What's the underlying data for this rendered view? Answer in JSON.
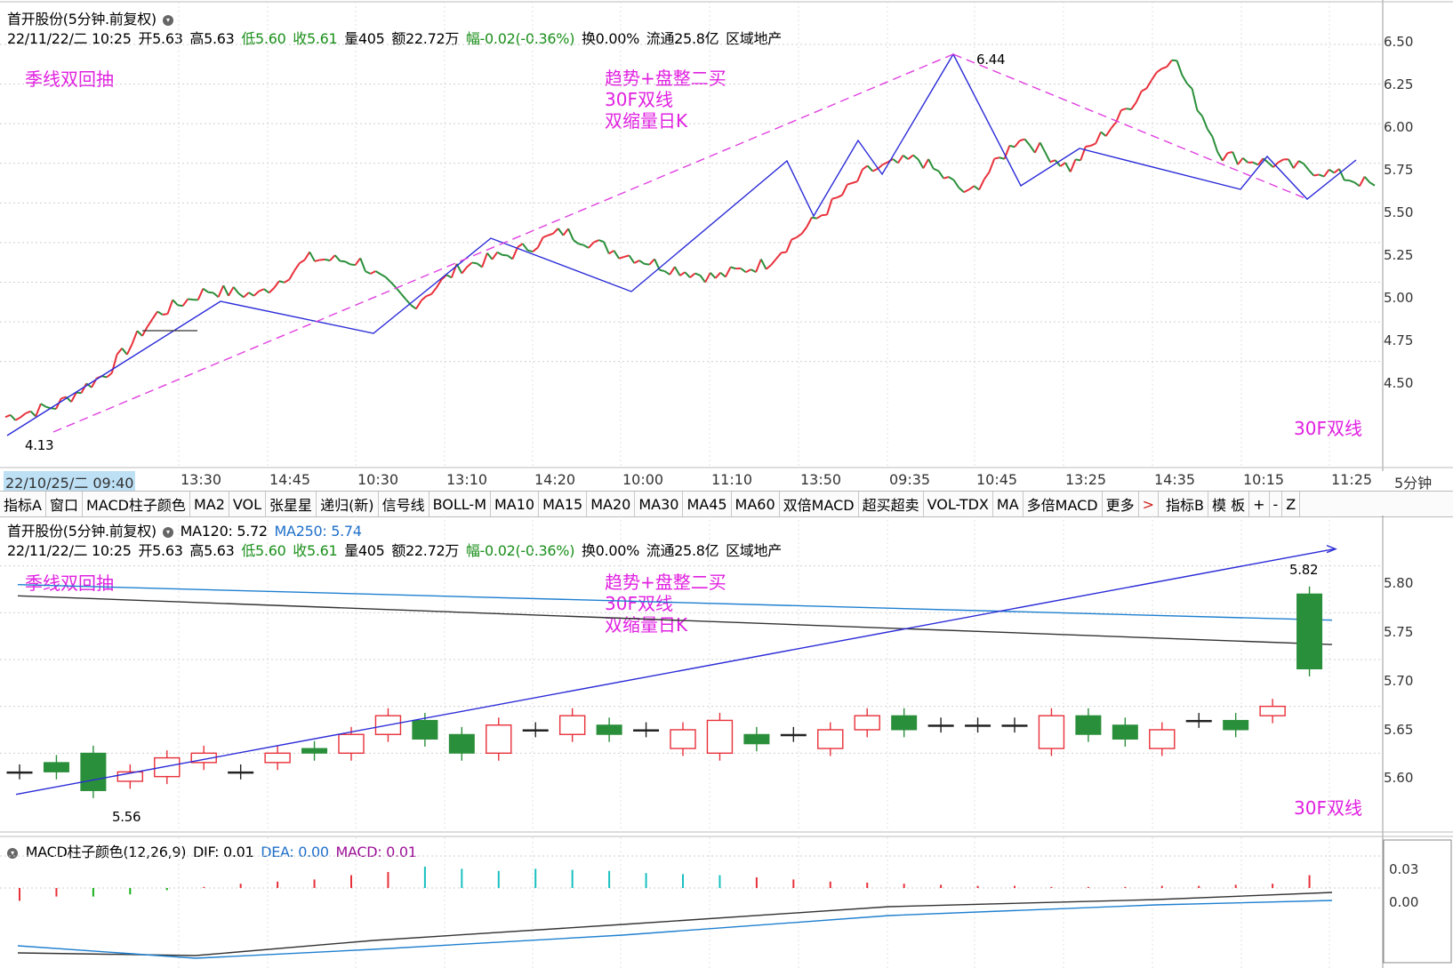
{
  "top": {
    "title": "首开股份(5分钟.前复权)",
    "bar": {
      "datetime": "22/11/22/二 10:25",
      "open": "开5.63",
      "high": "高5.63",
      "low": "低5.60",
      "close": "收5.61",
      "vol": "量405",
      "amt": "额22.72万",
      "chg": "幅-0.02(-0.36%)",
      "turn": "换0.00%",
      "flow": "流通25.8亿",
      "sector": "区域地产"
    },
    "notes": {
      "left": "季线双回抽",
      "mid1": "趋势+盘整二买",
      "mid2": "30F双线",
      "mid3": "双缩量日K",
      "br": "30F双线"
    },
    "y_ticks": [
      "6.50",
      "6.25",
      "6.00",
      "5.75",
      "5.50",
      "5.25",
      "5.00",
      "4.75",
      "4.50"
    ],
    "hi_label": "6.44",
    "lo_label": "4.13"
  },
  "time_axis": {
    "start": "22/10/25/二 09:40",
    "ticks": [
      "13:30",
      "14:45",
      "10:30",
      "13:10",
      "14:20",
      "10:00",
      "11:10",
      "13:50",
      "09:35",
      "10:45",
      "13:25",
      "14:35",
      "10:15",
      "11:25"
    ],
    "period": "5分钟"
  },
  "toolbar": {
    "items": [
      "指标A",
      "窗口",
      "MACD柱子颜色",
      "MA2",
      "VOL",
      "张星星",
      "递归(新)",
      "信号线",
      "BOLL-M",
      "MA10",
      "MA15",
      "MA20",
      "MA30",
      "MA45",
      "MA60",
      "双倍MACD",
      "超买超卖",
      "VOL-TDX",
      "MA",
      "多倍MACD",
      "更多",
      ">",
      "指标B",
      "模 板",
      "+",
      "-",
      "Z"
    ]
  },
  "mid": {
    "title": "首开股份(5分钟.前复权)",
    "ma120": "MA120: 5.72",
    "ma250": "MA250: 5.74",
    "y_ticks": [
      "5.80",
      "5.75",
      "5.70",
      "5.65",
      "5.60"
    ],
    "hi_label": "5.82",
    "lo_label": "5.56"
  },
  "macd": {
    "title": "MACD柱子颜色(12,26,9)",
    "dif": "DIF: 0.01",
    "dea": "DEA: 0.00",
    "macd": "MACD: 0.01",
    "y_ticks": [
      "0.03",
      "0.00"
    ]
  },
  "colors": {
    "up": "#e8303a",
    "down": "#2a8f3a",
    "trend": "#2b2bd8",
    "dash": "#e040e0",
    "ma120": "#333333",
    "ma250": "#1e7fd0",
    "note": "#e020e0"
  },
  "chart_data": [
    {
      "type": "line",
      "title": "首开股份(5分钟.前复权)",
      "ylim": [
        4.1,
        6.5
      ],
      "x": [
        0,
        6,
        12,
        18,
        24,
        30,
        36,
        42,
        48,
        54,
        60,
        66,
        72,
        78,
        84,
        90,
        96,
        102,
        108,
        114,
        120,
        126,
        132,
        138,
        144,
        150,
        156,
        162
      ],
      "series": [
        {
          "values": [
            4.15,
            4.22,
            4.43,
            4.8,
            4.95,
            4.92,
            5.15,
            5.13,
            4.85,
            5.1,
            5.18,
            5.32,
            5.2,
            5.1,
            5.03,
            5.12,
            5.4,
            5.7,
            5.78,
            5.55,
            5.92,
            5.72,
            6.05,
            6.44,
            5.8,
            5.75,
            5.7,
            5.61
          ]
        }
      ]
    },
    {
      "type": "bar",
      "title": "首开股份(5分钟.前复权)",
      "ylim": [
        5.55,
        5.83
      ],
      "candles": [
        [
          5.58,
          5.58
        ],
        [
          5.59,
          5.58
        ],
        [
          5.6,
          5.56
        ],
        [
          5.57,
          5.58
        ],
        [
          5.575,
          5.595
        ],
        [
          5.59,
          5.6
        ],
        [
          5.58,
          5.58
        ],
        [
          5.59,
          5.6
        ],
        [
          5.605,
          5.6
        ],
        [
          5.6,
          5.62
        ],
        [
          5.62,
          5.64
        ],
        [
          5.635,
          5.615
        ],
        [
          5.62,
          5.6
        ],
        [
          5.6,
          5.63
        ],
        [
          5.625,
          5.625
        ],
        [
          5.62,
          5.64
        ],
        [
          5.63,
          5.62
        ],
        [
          5.625,
          5.625
        ],
        [
          5.605,
          5.625
        ],
        [
          5.6,
          5.635
        ],
        [
          5.62,
          5.61
        ],
        [
          5.62,
          5.62
        ],
        [
          5.605,
          5.625
        ],
        [
          5.625,
          5.64
        ],
        [
          5.64,
          5.625
        ],
        [
          5.63,
          5.63
        ],
        [
          5.63,
          5.63
        ],
        [
          5.63,
          5.63
        ],
        [
          5.605,
          5.64
        ],
        [
          5.64,
          5.62
        ],
        [
          5.63,
          5.615
        ],
        [
          5.605,
          5.625
        ],
        [
          5.635,
          5.635
        ],
        [
          5.635,
          5.625
        ],
        [
          5.64,
          5.65
        ],
        [
          5.77,
          5.69
        ]
      ]
    },
    {
      "type": "bar",
      "title": "MACD柱子颜色(12,26,9)",
      "ylim": [
        -0.06,
        0.04
      ],
      "values": [
        -0.012,
        -0.008,
        -0.008,
        -0.006,
        -0.002,
        0.001,
        0.004,
        0.006,
        0.008,
        0.012,
        0.015,
        0.02,
        0.018,
        0.016,
        0.018,
        0.017,
        0.016,
        0.014,
        0.013,
        0.012,
        0.01,
        0.008,
        0.006,
        0.005,
        0.004,
        0.003,
        0.002,
        0.002,
        0.001,
        0.001,
        0.001,
        0.002,
        0.002,
        0.003,
        0.004,
        0.012
      ]
    }
  ]
}
